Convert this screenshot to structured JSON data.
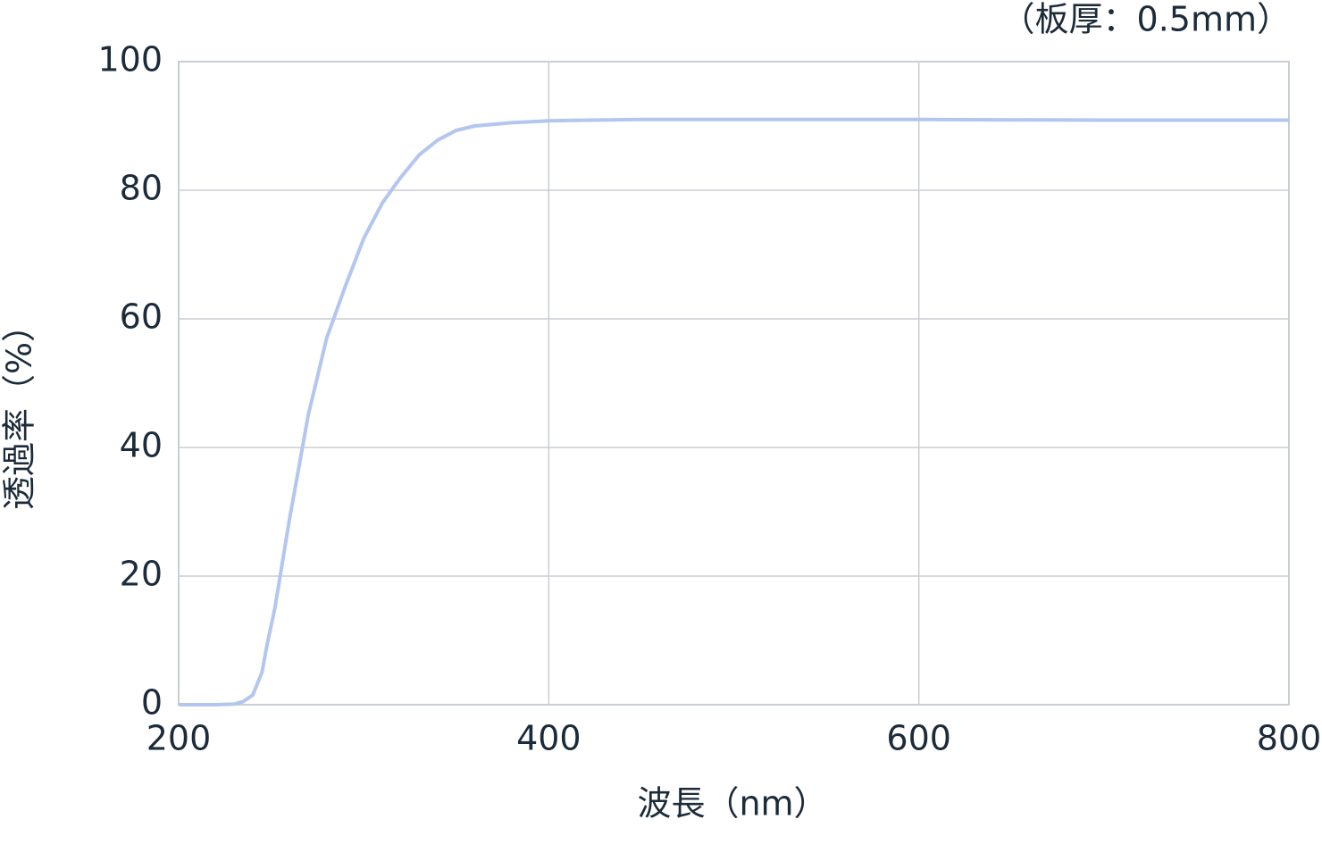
{
  "chart_data": {
    "type": "line",
    "title": "（板厚：0.5mm）",
    "x_label": "波長（nm）",
    "y_label": "透過率（%）",
    "x": [
      200,
      210,
      220,
      230,
      235,
      240,
      245,
      248,
      252,
      256,
      260,
      265,
      270,
      275,
      280,
      285,
      290,
      300,
      310,
      320,
      330,
      340,
      350,
      360,
      380,
      400,
      450,
      500,
      600,
      700,
      800
    ],
    "values": [
      0,
      0,
      0,
      0.1,
      0.5,
      1.5,
      5,
      9.6,
      15,
      22,
      29,
      37,
      45,
      51,
      57,
      61,
      65,
      72.5,
      78,
      82,
      85.5,
      87.8,
      89.3,
      90,
      90.5,
      90.8,
      91,
      91,
      91,
      90.9,
      90.9
    ],
    "color": "#b3c6ef",
    "xlim": [
      200,
      800
    ],
    "ylim": [
      0,
      100
    ],
    "xticks": [
      200,
      400,
      600,
      800
    ],
    "yticks": [
      0,
      20,
      40,
      60,
      80,
      100
    ],
    "grid": true
  }
}
